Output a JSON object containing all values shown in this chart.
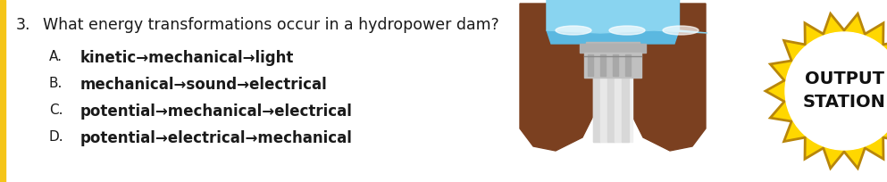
{
  "question_number": "3.",
  "question_text": "What energy transformations occur in a hydropower dam?",
  "options": [
    {
      "letter": "A.",
      "text": "kinetic→mechanical→light"
    },
    {
      "letter": "B.",
      "text": "mechanical→sound→electrical"
    },
    {
      "letter": "C.",
      "text": "potential→mechanical→electrical"
    },
    {
      "letter": "D.",
      "text": "potential→electrical→mechanical"
    }
  ],
  "badge_text_line1": "OUTPUT",
  "badge_text_line2": "STATION",
  "bg_color": "#ffffff",
  "text_color": "#1a1a1a",
  "question_fontsize": 12.5,
  "option_letter_fontsize": 11,
  "option_text_fontsize": 12,
  "badge_color": "#FFD700",
  "badge_outline": "#B8860B",
  "left_accent_color": "#F5C518",
  "dam_brown": "#7B4020",
  "dam_gray_light": "#d0d0d0",
  "dam_gray_dark": "#aaaaaa",
  "dam_water_blue": "#5BB8E0",
  "dam_water_light": "#89D4F0"
}
